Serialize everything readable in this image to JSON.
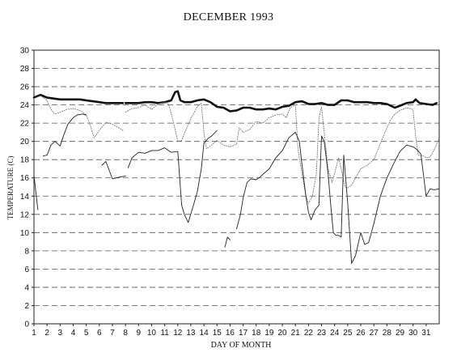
{
  "chart_data": {
    "type": "line",
    "title": "DECEMBER 1993",
    "xlabel": "DAY OF MONTH",
    "ylabel": "TEMPERATURE (C)",
    "xlim": [
      1,
      32
    ],
    "ylim": [
      0,
      30
    ],
    "yticks": [
      0,
      2,
      4,
      6,
      8,
      10,
      12,
      14,
      16,
      18,
      20,
      22,
      24,
      26,
      28,
      30
    ],
    "xticks": [
      1,
      2,
      3,
      4,
      5,
      6,
      7,
      8,
      9,
      10,
      11,
      12,
      13,
      14,
      15,
      16,
      17,
      18,
      19,
      20,
      21,
      22,
      23,
      24,
      25,
      26,
      27,
      28,
      29,
      30,
      31
    ],
    "grid": "horizontal dashed",
    "legend": "none",
    "series": [
      {
        "style": "thick",
        "segments": [
          [
            [
              1,
              24.8
            ],
            [
              1.5,
              25.1
            ],
            [
              2,
              24.8
            ],
            [
              2.5,
              24.7
            ],
            [
              3,
              24.6
            ],
            [
              4,
              24.6
            ],
            [
              4.5,
              24.6
            ],
            [
              5,
              24.5
            ],
            [
              5.5,
              24.4
            ],
            [
              6,
              24.3
            ],
            [
              6.5,
              24.2
            ],
            [
              7,
              24.2
            ],
            [
              7.5,
              24.2
            ],
            [
              7.8,
              24.2
            ]
          ],
          [
            [
              8,
              24.2
            ],
            [
              8.5,
              24.2
            ],
            [
              9,
              24.2
            ],
            [
              9.5,
              24.3
            ],
            [
              10,
              24.3
            ],
            [
              10.5,
              24.2
            ],
            [
              11,
              24.3
            ],
            [
              11.5,
              24.5
            ],
            [
              11.8,
              25.4
            ],
            [
              12,
              25.5
            ],
            [
              12.2,
              24.5
            ],
            [
              12.5,
              24.3
            ],
            [
              13,
              24.3
            ],
            [
              13.5,
              24.5
            ],
            [
              14,
              24.6
            ],
            [
              14.5,
              24.3
            ],
            [
              15,
              23.8
            ],
            [
              15.5,
              23.7
            ],
            [
              16,
              23.3
            ],
            [
              16.5,
              23.4
            ],
            [
              17,
              23.7
            ],
            [
              17.5,
              23.7
            ],
            [
              18,
              23.5
            ],
            [
              18.5,
              23.5
            ],
            [
              19,
              23.6
            ],
            [
              19.5,
              23.5
            ],
            [
              20,
              23.8
            ],
            [
              20.5,
              23.9
            ],
            [
              21,
              24.3
            ],
            [
              21.5,
              24.4
            ],
            [
              22,
              24.1
            ],
            [
              22.5,
              24.1
            ],
            [
              23,
              24.2
            ],
            [
              23.5,
              24.0
            ],
            [
              24,
              24.0
            ],
            [
              24.5,
              24.5
            ],
            [
              25,
              24.5
            ],
            [
              25.5,
              24.3
            ],
            [
              26,
              24.3
            ],
            [
              26.5,
              24.3
            ],
            [
              27,
              24.2
            ],
            [
              27.5,
              24.2
            ],
            [
              28,
              24.1
            ],
            [
              28.3,
              23.9
            ],
            [
              28.6,
              23.7
            ],
            [
              29,
              23.9
            ],
            [
              29.5,
              24.2
            ],
            [
              30,
              24.3
            ],
            [
              30.2,
              24.6
            ],
            [
              30.5,
              24.2
            ],
            [
              31,
              24.1
            ],
            [
              31.5,
              24.0
            ],
            [
              31.8,
              24.2
            ]
          ]
        ]
      },
      {
        "style": "thin-dotted",
        "segments": [
          [
            [
              1,
              24.7
            ],
            [
              1.5,
              25.0
            ],
            [
              2,
              24.5
            ],
            [
              2.3,
              23.5
            ],
            [
              2.6,
              23.0
            ],
            [
              3,
              23.2
            ],
            [
              3.5,
              23.5
            ],
            [
              4,
              23.6
            ],
            [
              4.5,
              23.4
            ],
            [
              5,
              22.9
            ],
            [
              5.3,
              21.8
            ],
            [
              5.6,
              20.4
            ],
            [
              6,
              21.2
            ],
            [
              6.5,
              22.1
            ],
            [
              7,
              21.9
            ],
            [
              7.5,
              21.5
            ],
            [
              7.8,
              21.2
            ]
          ],
          [
            [
              8,
              23.2
            ],
            [
              8.5,
              23.6
            ],
            [
              9,
              23.7
            ],
            [
              9.5,
              24.0
            ],
            [
              10,
              23.5
            ],
            [
              10.5,
              24.1
            ],
            [
              11,
              24.3
            ],
            [
              11.3,
              24.1
            ],
            [
              11.6,
              22.5
            ],
            [
              11.8,
              21.3
            ],
            [
              12,
              20.0
            ],
            [
              12.3,
              20.1
            ],
            [
              12.6,
              21.2
            ],
            [
              13,
              22.5
            ],
            [
              13.5,
              23.8
            ],
            [
              13.8,
              24.2
            ],
            [
              14,
              21.0
            ],
            [
              14.2,
              19.2
            ],
            [
              14.5,
              19.5
            ],
            [
              15,
              20.1
            ],
            [
              15.5,
              19.6
            ],
            [
              16,
              19.4
            ],
            [
              16.5,
              19.7
            ],
            [
              16.7,
              21.5
            ],
            [
              17,
              21.0
            ],
            [
              17.5,
              21.3
            ],
            [
              18,
              22.2
            ],
            [
              18.5,
              22.0
            ],
            [
              19,
              22.6
            ],
            [
              19.5,
              22.9
            ],
            [
              20,
              23.0
            ],
            [
              20.3,
              22.6
            ],
            [
              20.6,
              23.7
            ],
            [
              21,
              24.0
            ],
            [
              21.2,
              19.0
            ],
            [
              21.5,
              16.5
            ],
            [
              21.8,
              14.0
            ],
            [
              22,
              13.2
            ],
            [
              22.3,
              14.0
            ],
            [
              22.6,
              16.4
            ],
            [
              22.8,
              22.5
            ],
            [
              23,
              23.8
            ],
            [
              23.2,
              21.0
            ],
            [
              23.5,
              17.0
            ],
            [
              23.8,
              15.5
            ],
            [
              24,
              16.5
            ],
            [
              24.3,
              18.2
            ],
            [
              24.5,
              17.0
            ],
            [
              24.8,
              15.0
            ],
            [
              25,
              14.9
            ],
            [
              25.3,
              15.2
            ],
            [
              25.6,
              16.0
            ],
            [
              26,
              17.0
            ],
            [
              26.5,
              17.4
            ],
            [
              27,
              18.0
            ],
            [
              27.5,
              19.8
            ],
            [
              28,
              21.5
            ],
            [
              28.3,
              22.4
            ],
            [
              28.6,
              23.0
            ],
            [
              29,
              23.4
            ],
            [
              29.5,
              23.7
            ],
            [
              30,
              23.5
            ],
            [
              30.2,
              20.5
            ],
            [
              30.4,
              18.5
            ],
            [
              30.8,
              18.4
            ],
            [
              31,
              18.2
            ],
            [
              31.3,
              18.3
            ],
            [
              31.6,
              19.0
            ],
            [
              32,
              20.4
            ]
          ]
        ]
      },
      {
        "style": "thin",
        "segments": [
          [
            [
              1,
              16.3
            ],
            [
              1.3,
              12.5
            ]
          ],
          [
            [
              1.7,
              18.4
            ],
            [
              2,
              18.5
            ],
            [
              2.3,
              19.6
            ],
            [
              2.6,
              20.0
            ],
            [
              3,
              19.5
            ],
            [
              3.3,
              20.8
            ],
            [
              3.6,
              21.9
            ],
            [
              4,
              22.6
            ],
            [
              4.3,
              22.9
            ],
            [
              4.7,
              23.0
            ],
            [
              5,
              22.9
            ]
          ],
          [
            [
              6.2,
              17.4
            ],
            [
              6.5,
              17.8
            ],
            [
              7,
              15.9
            ],
            [
              7.3,
              16.0
            ],
            [
              7.6,
              16.1
            ],
            [
              8,
              16.2
            ]
          ],
          [
            [
              8.2,
              17.1
            ],
            [
              8.5,
              18.2
            ],
            [
              9,
              18.8
            ],
            [
              9.5,
              18.7
            ],
            [
              10,
              19.0
            ],
            [
              10.5,
              19.0
            ],
            [
              11,
              19.3
            ],
            [
              11.5,
              18.8
            ],
            [
              12,
              18.9
            ],
            [
              12.3,
              13.0
            ],
            [
              12.5,
              12.0
            ],
            [
              12.8,
              11.1
            ],
            [
              13.2,
              13.0
            ],
            [
              13.5,
              14.5
            ],
            [
              13.8,
              17.0
            ],
            [
              14,
              19.8
            ],
            [
              14.3,
              20.3
            ],
            [
              14.6,
              20.6
            ],
            [
              15,
              21.2
            ]
          ],
          [
            [
              15.6,
              8.4
            ],
            [
              15.8,
              9.5
            ],
            [
              16,
              9.2
            ]
          ],
          [
            [
              16.5,
              10.4
            ],
            [
              16.8,
              12.0
            ],
            [
              17,
              13.8
            ],
            [
              17.3,
              15.5
            ],
            [
              17.6,
              15.9
            ],
            [
              18,
              15.8
            ],
            [
              18.3,
              16.1
            ],
            [
              18.6,
              16.5
            ],
            [
              19,
              17.0
            ],
            [
              19.5,
              18.2
            ],
            [
              20,
              19.0
            ],
            [
              20.5,
              20.4
            ],
            [
              21,
              21.0
            ],
            [
              21.3,
              20.0
            ],
            [
              21.5,
              17.5
            ],
            [
              21.8,
              14.0
            ],
            [
              22,
              12.2
            ],
            [
              22.2,
              11.4
            ],
            [
              22.5,
              12.5
            ],
            [
              22.8,
              13.0
            ],
            [
              23,
              20.6
            ],
            [
              23.2,
              20.0
            ],
            [
              23.5,
              16.5
            ],
            [
              23.7,
              13.0
            ],
            [
              23.9,
              10.0
            ],
            [
              24.1,
              9.7
            ],
            [
              24.3,
              9.7
            ],
            [
              24.5,
              9.5
            ],
            [
              24.7,
              18.5
            ],
            [
              25,
              13.2
            ],
            [
              25.3,
              6.6
            ],
            [
              25.6,
              7.5
            ],
            [
              26,
              10.0
            ],
            [
              26.3,
              8.7
            ],
            [
              26.6,
              8.9
            ],
            [
              27,
              11.0
            ],
            [
              27.5,
              14.0
            ],
            [
              28,
              16.0
            ],
            [
              28.5,
              17.5
            ],
            [
              29,
              18.9
            ],
            [
              29.5,
              19.6
            ],
            [
              30,
              19.4
            ],
            [
              30.3,
              19.1
            ],
            [
              30.6,
              18.6
            ],
            [
              31,
              14.0
            ],
            [
              31.3,
              14.8
            ],
            [
              31.6,
              14.7
            ],
            [
              32,
              14.8
            ]
          ]
        ]
      }
    ]
  }
}
